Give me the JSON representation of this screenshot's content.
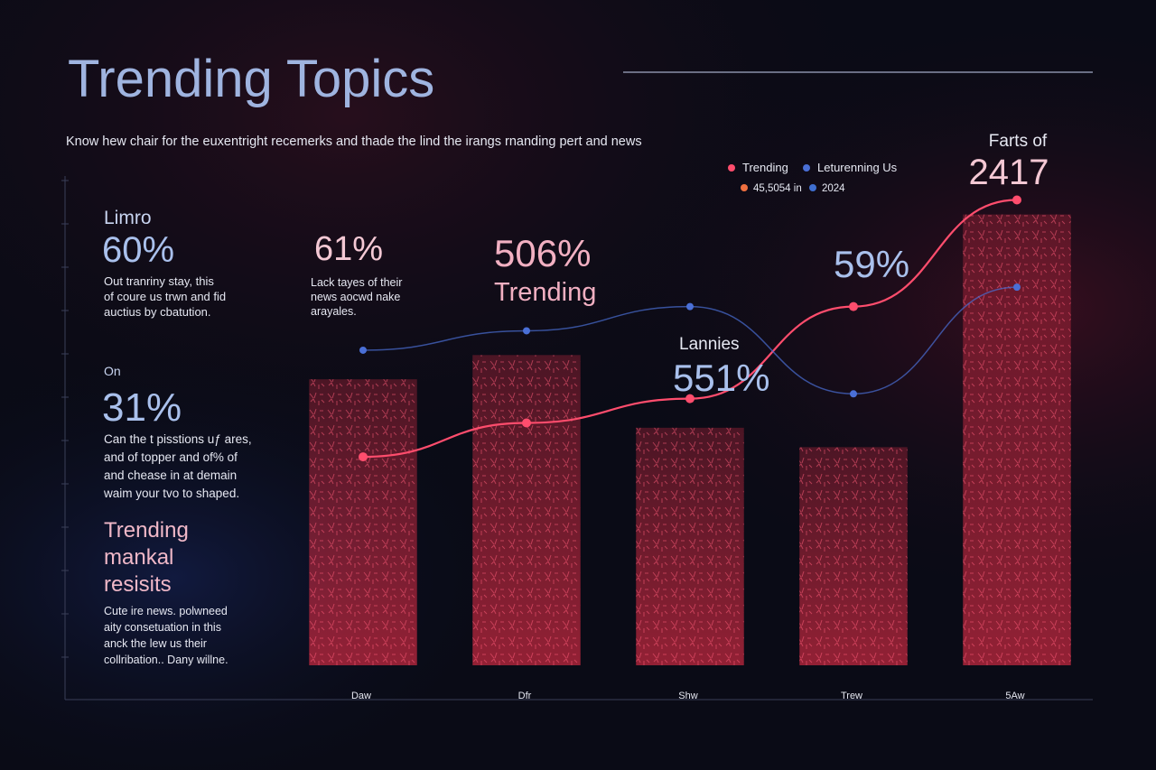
{
  "chart_data": {
    "type": "bar",
    "title": "Trending Topics",
    "subtitle": "Know hew chair for the euxentright recemerks and thade the lind the irangs rnanding pert and news",
    "categories": [
      "Daw",
      "Dfr",
      "Shw",
      "Trew",
      "5Aw"
    ],
    "values": [
      59,
      64,
      49,
      45,
      93
    ],
    "color": "#c0283f",
    "ylim": [
      0,
      100
    ],
    "series": [
      {
        "name": "Trending",
        "color": "#ff4d6d",
        "values": [
          43,
          50,
          55,
          74,
          96
        ]
      },
      {
        "name": "Leturenning Us",
        "color": "#4a6fd6",
        "values": [
          65,
          69,
          74,
          56,
          78
        ]
      }
    ],
    "legend_row2": [
      {
        "label": "45,5054 in",
        "color": "#f07040"
      },
      {
        "label": "2024",
        "color": "#3f6fd0"
      }
    ],
    "callouts": [
      {
        "label": "61%",
        "text": [
          "Lack tayes of their",
          "news aocwd nake",
          "arayales."
        ]
      },
      {
        "label": "506%",
        "sub": "Trending"
      },
      {
        "head": "Lannies",
        "label": "551%"
      },
      {
        "label": "59%"
      },
      {
        "head": "Farts of",
        "label": "2417"
      }
    ]
  },
  "panel": [
    {
      "head": "Limro",
      "label": "60%",
      "text": [
        "Out tranriny stay, this",
        "of coure us trwn and fid",
        "auctius by cbatution."
      ]
    },
    {
      "head": "On",
      "label": "31%",
      "text": [
        "Can the t pisstions uƒ ares,",
        "and of topper and of% of",
        "and chease in at demain",
        "waim your tvo to shaped."
      ]
    },
    {
      "title": [
        "Trending",
        "mankal",
        "resisits"
      ],
      "text": [
        "Cute ire news. polwneed",
        "aity consetuation in this",
        "anck the lew us their",
        "collribation.. Dany willne."
      ]
    }
  ]
}
